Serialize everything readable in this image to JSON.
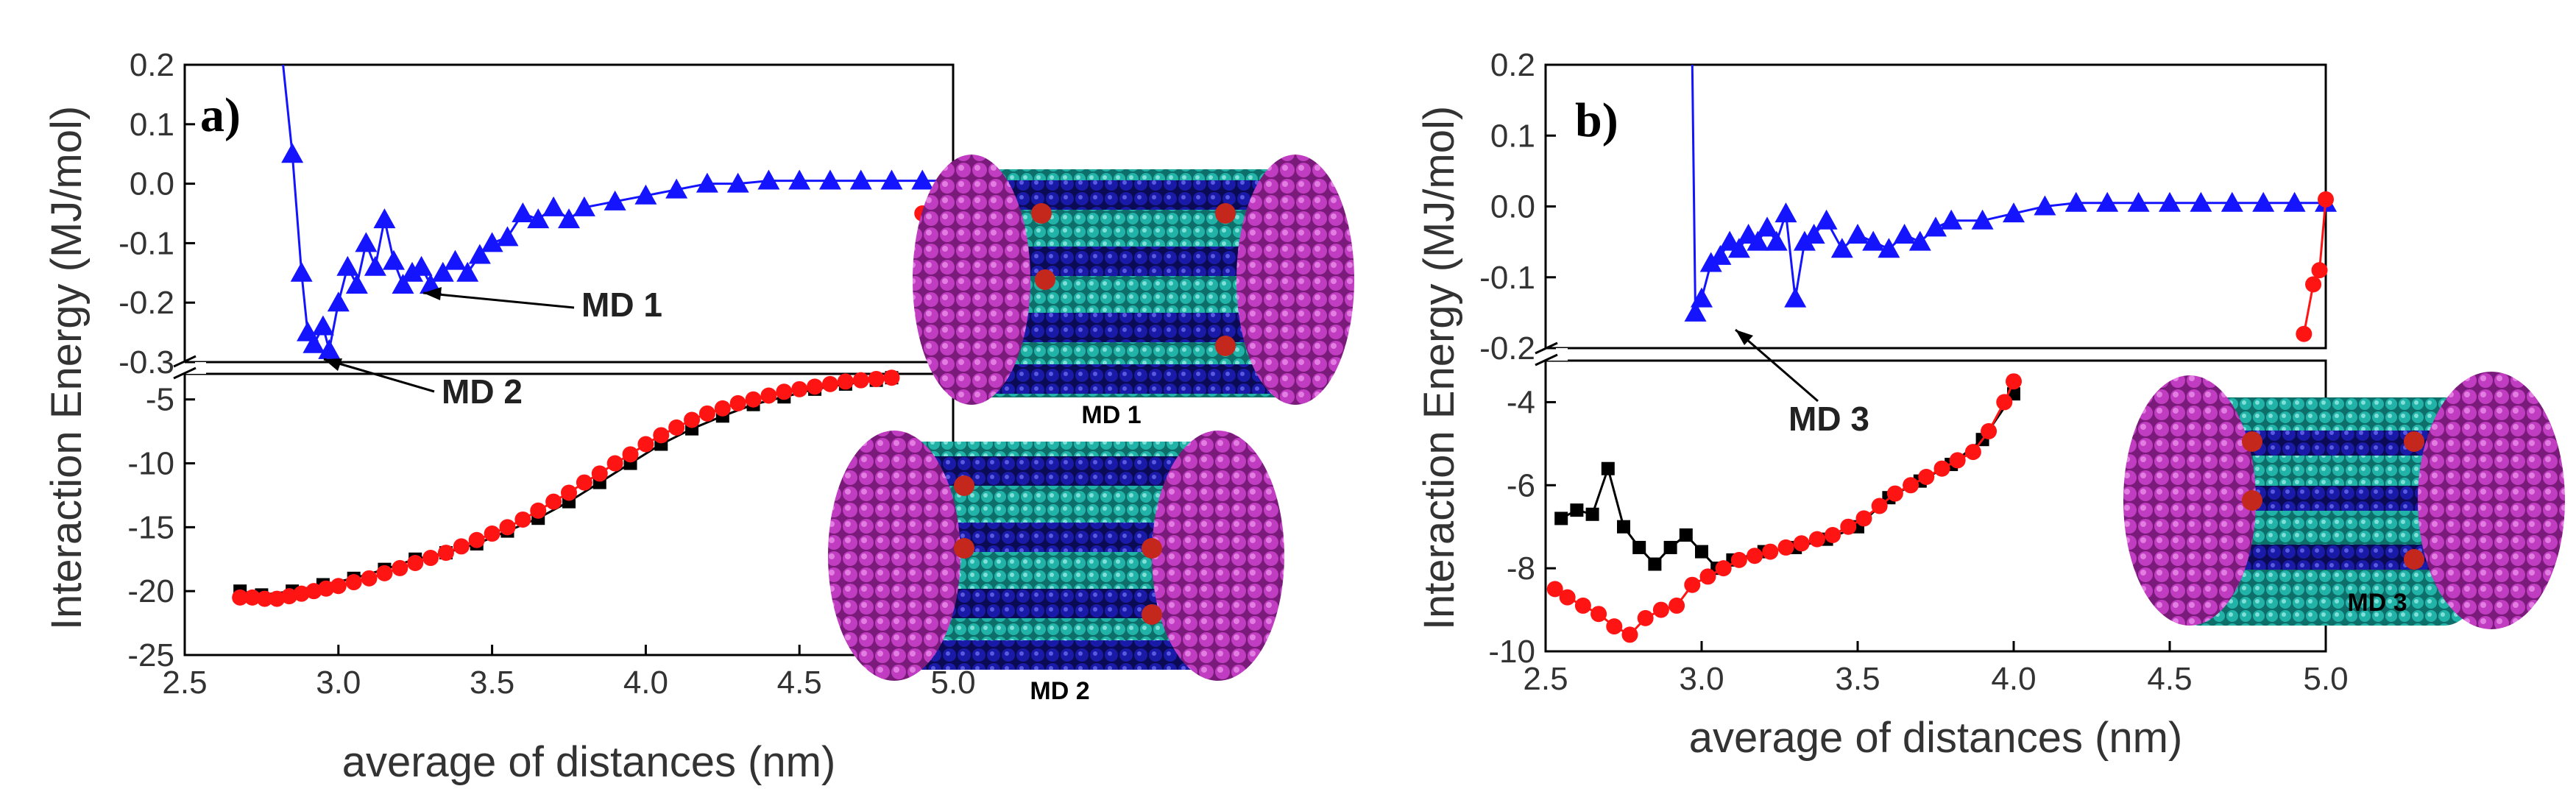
{
  "chart_data": [
    {
      "type": "line",
      "panel_label": "a)",
      "xlabel": "average of distances (nm)",
      "ylabel": "Interaction Energy (MJ/mol)",
      "xlim": [
        2.5,
        5.0
      ],
      "xticks": [
        "2.5",
        "3.0",
        "3.5",
        "4.0",
        "4.5",
        "5.0"
      ],
      "upper_axis": {
        "ylim": [
          -0.3,
          0.2
        ],
        "yticks": [
          "0.2",
          "0.1",
          "0.0",
          "-0.1",
          "-0.2",
          "-0.3"
        ]
      },
      "lower_axis": {
        "ylim": [
          -25,
          -3
        ],
        "yticks": [
          "-5",
          "-10",
          "-15",
          "-20",
          "-25"
        ]
      },
      "annotations": [
        {
          "text": "MD 1",
          "x": 3.3,
          "y": -0.175
        },
        {
          "text": "MD 2",
          "x": 2.97,
          "y": -0.28
        }
      ],
      "images": [
        {
          "name": "md1-structure",
          "label": "MD 1"
        },
        {
          "name": "md2-structure",
          "label": "MD 2"
        }
      ],
      "series": [
        {
          "name": "MD 1/MD 2 blue (upper)",
          "color": "#1414ff",
          "marker": "triangle",
          "axis": "upper",
          "x": [
            2.82,
            2.85,
            2.88,
            2.9,
            2.92,
            2.95,
            2.97,
            3.0,
            3.03,
            3.06,
            3.09,
            3.12,
            3.15,
            3.18,
            3.21,
            3.24,
            3.27,
            3.3,
            3.34,
            3.38,
            3.42,
            3.46,
            3.5,
            3.55,
            3.6,
            3.65,
            3.7,
            3.75,
            3.8,
            3.9,
            4.0,
            4.1,
            4.2,
            4.3,
            4.4,
            4.5,
            4.6,
            4.7,
            4.8,
            4.9,
            5.0
          ],
          "y": [
            0.2,
            0.05,
            -0.15,
            -0.25,
            -0.27,
            -0.24,
            -0.28,
            -0.2,
            -0.14,
            -0.17,
            -0.1,
            -0.14,
            -0.06,
            -0.13,
            -0.17,
            -0.15,
            -0.14,
            -0.17,
            -0.15,
            -0.13,
            -0.15,
            -0.12,
            -0.1,
            -0.09,
            -0.05,
            -0.06,
            -0.04,
            -0.06,
            -0.04,
            -0.03,
            -0.02,
            -0.01,
            0.0,
            0.0,
            0.005,
            0.005,
            0.005,
            0.005,
            0.005,
            0.005,
            0.005
          ]
        },
        {
          "name": "MD 1 black (lower)",
          "color": "#000000",
          "marker": "square",
          "axis": "lower",
          "x": [
            2.68,
            2.75,
            2.85,
            2.95,
            3.05,
            3.15,
            3.25,
            3.35,
            3.45,
            3.55,
            3.65,
            3.75,
            3.85,
            3.95,
            4.05,
            4.15,
            4.25,
            4.35,
            4.45,
            4.55,
            4.65,
            4.75,
            4.8
          ],
          "y": [
            -20.0,
            -20.3,
            -20.0,
            -19.5,
            -19.0,
            -18.3,
            -17.5,
            -17.0,
            -16.3,
            -15.3,
            -14.3,
            -13.0,
            -11.5,
            -10.0,
            -8.5,
            -7.3,
            -6.3,
            -5.4,
            -4.8,
            -4.2,
            -3.8,
            -3.5,
            -3.3
          ]
        },
        {
          "name": "MD 2 red (lower)",
          "color": "#ff1414",
          "marker": "circle",
          "axis": "lower",
          "x": [
            2.68,
            2.72,
            2.76,
            2.8,
            2.84,
            2.88,
            2.92,
            2.96,
            3.0,
            3.05,
            3.1,
            3.15,
            3.2,
            3.25,
            3.3,
            3.35,
            3.4,
            3.45,
            3.5,
            3.55,
            3.6,
            3.65,
            3.7,
            3.75,
            3.8,
            3.85,
            3.9,
            3.95,
            4.0,
            4.05,
            4.1,
            4.15,
            4.2,
            4.25,
            4.3,
            4.35,
            4.4,
            4.45,
            4.5,
            4.55,
            4.6,
            4.65,
            4.7,
            4.75,
            4.8
          ],
          "y": [
            -20.5,
            -20.5,
            -20.6,
            -20.6,
            -20.4,
            -20.2,
            -20.0,
            -19.8,
            -19.6,
            -19.3,
            -19.0,
            -18.6,
            -18.2,
            -17.8,
            -17.4,
            -17.0,
            -16.5,
            -16.0,
            -15.5,
            -15.0,
            -14.4,
            -13.7,
            -13.0,
            -12.3,
            -11.5,
            -10.8,
            -10.0,
            -9.3,
            -8.5,
            -7.8,
            -7.2,
            -6.6,
            -6.1,
            -5.7,
            -5.3,
            -5.0,
            -4.7,
            -4.4,
            -4.2,
            -4.0,
            -3.8,
            -3.6,
            -3.5,
            -3.4,
            -3.3
          ]
        },
        {
          "name": "red segment near 5.0 nm (upper)",
          "color": "#ff1414",
          "marker": "circle",
          "axis": "upper",
          "x": [
            4.9,
            4.93
          ],
          "y": [
            -0.05,
            -0.06
          ]
        }
      ]
    },
    {
      "type": "line",
      "panel_label": "b)",
      "xlabel": "average of distances (nm)",
      "ylabel": "Interaction Energy (MJ/mol)",
      "xlim": [
        2.5,
        5.0
      ],
      "xticks": [
        "2.5",
        "3.0",
        "3.5",
        "4.0",
        "4.5",
        "5.0"
      ],
      "upper_axis": {
        "ylim": [
          -0.2,
          0.2
        ],
        "yticks": [
          "0.2",
          "0.1",
          "0.0",
          "-0.1",
          "-0.2"
        ]
      },
      "lower_axis": {
        "ylim": [
          -10,
          -3
        ],
        "yticks": [
          "-4",
          "-6",
          "-8",
          "-10"
        ]
      },
      "annotations": [
        {
          "text": "MD 3",
          "x": 3.0,
          "y": -0.155
        }
      ],
      "images": [
        {
          "name": "md3-structure",
          "label": "MD 3"
        }
      ],
      "series": [
        {
          "name": "MD 3 blue (upper)",
          "color": "#1414ff",
          "marker": "triangle",
          "axis": "upper",
          "x": [
            2.97,
            2.98,
            3.0,
            3.03,
            3.06,
            3.09,
            3.12,
            3.15,
            3.18,
            3.21,
            3.24,
            3.27,
            3.3,
            3.33,
            3.36,
            3.4,
            3.45,
            3.5,
            3.55,
            3.6,
            3.65,
            3.7,
            3.75,
            3.8,
            3.9,
            4.0,
            4.1,
            4.2,
            4.3,
            4.4,
            4.5,
            4.6,
            4.7,
            4.8,
            4.9,
            5.0
          ],
          "y": [
            0.2,
            -0.15,
            -0.13,
            -0.08,
            -0.07,
            -0.05,
            -0.06,
            -0.04,
            -0.05,
            -0.03,
            -0.05,
            -0.01,
            -0.13,
            -0.05,
            -0.04,
            -0.02,
            -0.06,
            -0.04,
            -0.05,
            -0.06,
            -0.04,
            -0.05,
            -0.03,
            -0.02,
            -0.02,
            -0.01,
            0.0,
            0.005,
            0.005,
            0.005,
            0.005,
            0.005,
            0.005,
            0.005,
            0.005,
            0.005
          ]
        },
        {
          "name": "MD 3 black (lower)",
          "color": "#000000",
          "marker": "square",
          "axis": "lower",
          "x": [
            2.55,
            2.6,
            2.65,
            2.7,
            2.75,
            2.8,
            2.85,
            2.9,
            2.95,
            3.0,
            3.05,
            3.1,
            3.2,
            3.3,
            3.4,
            3.5,
            3.6,
            3.7,
            3.8,
            3.9,
            4.0
          ],
          "y": [
            -6.8,
            -6.6,
            -6.7,
            -5.6,
            -7.0,
            -7.5,
            -7.9,
            -7.5,
            -7.2,
            -7.6,
            -8.0,
            -7.8,
            -7.6,
            -7.5,
            -7.3,
            -7.0,
            -6.3,
            -5.9,
            -5.5,
            -4.9,
            -3.8
          ]
        },
        {
          "name": "MD 3 red (lower)",
          "color": "#ff1414",
          "marker": "circle",
          "axis": "lower",
          "x": [
            2.53,
            2.57,
            2.62,
            2.67,
            2.72,
            2.77,
            2.82,
            2.87,
            2.92,
            2.97,
            3.02,
            3.07,
            3.12,
            3.17,
            3.22,
            3.27,
            3.32,
            3.37,
            3.42,
            3.47,
            3.52,
            3.57,
            3.62,
            3.67,
            3.72,
            3.77,
            3.82,
            3.87,
            3.92,
            3.97,
            4.0
          ],
          "y": [
            -8.5,
            -8.7,
            -8.9,
            -9.1,
            -9.4,
            -9.6,
            -9.2,
            -9.0,
            -8.9,
            -8.4,
            -8.2,
            -8.0,
            -7.8,
            -7.7,
            -7.6,
            -7.5,
            -7.4,
            -7.3,
            -7.2,
            -7.0,
            -6.8,
            -6.5,
            -6.2,
            -6.0,
            -5.8,
            -5.6,
            -5.4,
            -5.2,
            -4.7,
            -4.0,
            -3.5
          ]
        },
        {
          "name": "red segment near 5.0 nm (upper)",
          "color": "#ff1414",
          "marker": "circle",
          "axis": "upper",
          "x": [
            4.93,
            4.96,
            4.98,
            5.0
          ],
          "y": [
            -0.18,
            -0.11,
            -0.09,
            0.01
          ]
        }
      ]
    }
  ]
}
